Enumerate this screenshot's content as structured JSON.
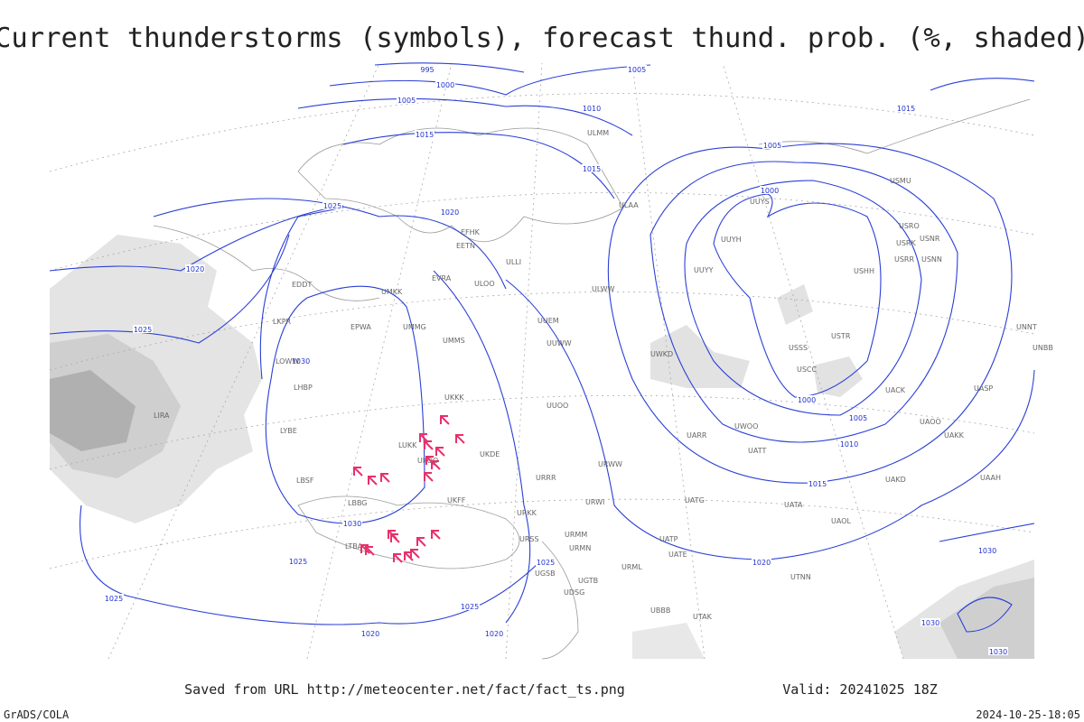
{
  "title": "Current thunderstorms (symbols), forecast thund. prob. (%, shaded)",
  "footer": {
    "source": "Saved from URL http://meteocenter.net/fact/fact_ts.png",
    "valid": "Valid: 20241025 18Z",
    "credit": "GrADS/COLA",
    "timestamp": "2024-10-25-18:05"
  },
  "isobar_labels": [
    "995",
    "1000",
    "1005",
    "1005",
    "1010",
    "1015",
    "1015",
    "1015",
    "1025",
    "1020",
    "1020",
    "1025",
    "1030",
    "1005",
    "1000",
    "1000",
    "1005",
    "1010",
    "1015",
    "1020",
    "1030",
    "1025",
    "1025",
    "1025",
    "1025",
    "1020",
    "1020",
    "1030",
    "1030",
    "1030"
  ],
  "stations": [
    "EFHK",
    "EETN",
    "ULLI",
    "ULOO",
    "EVRA",
    "UMKK",
    "EPWA",
    "UMMG",
    "UMMS",
    "UUEM",
    "UUWW",
    "UUOO",
    "UKKK",
    "LUKK",
    "UKOO",
    "UKDE",
    "URRR",
    "URWW",
    "URWI",
    "UATG",
    "UATT",
    "UARR",
    "UWOO",
    "UWKD",
    "ULWW",
    "ULAA",
    "ULMM",
    "UUYY",
    "UUYH",
    "UUYS",
    "USSS",
    "USCC",
    "USTR",
    "USHH",
    "USRR",
    "USNN",
    "USRK",
    "USRO",
    "USNR",
    "USMU",
    "UACK",
    "UAOO",
    "UAKK",
    "UASP",
    "UNBB",
    "UNNT",
    "LIRA",
    "LHBP",
    "LKPR",
    "EDDT",
    "LOWW",
    "LYBE",
    "LBSF",
    "LBBG",
    "LTBA",
    "UKFF",
    "URKK",
    "URSS",
    "URMM",
    "URMN",
    "URML",
    "UGTB",
    "UGSB",
    "UDSG",
    "UBBB",
    "UTAK",
    "UTNN",
    "UATE",
    "UATP",
    "UATA",
    "UAOL",
    "UAKD",
    "UAAH"
  ]
}
